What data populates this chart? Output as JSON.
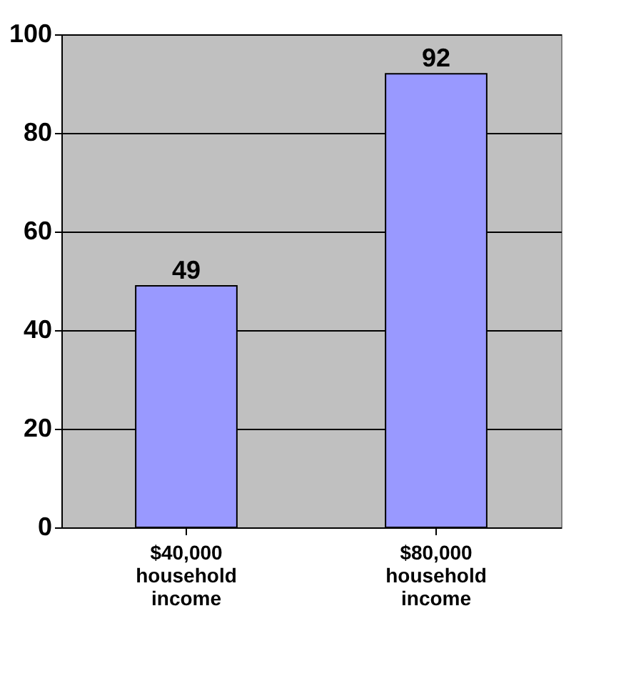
{
  "chart_data": {
    "type": "bar",
    "categories": [
      "$40,000 household income",
      "$80,000 household income"
    ],
    "values": [
      49,
      92
    ],
    "color": "#9999ff",
    "ylim": [
      0,
      100
    ],
    "yticks": [
      0,
      20,
      40,
      60,
      80,
      100
    ],
    "grid": "y",
    "data_labels": true
  }
}
